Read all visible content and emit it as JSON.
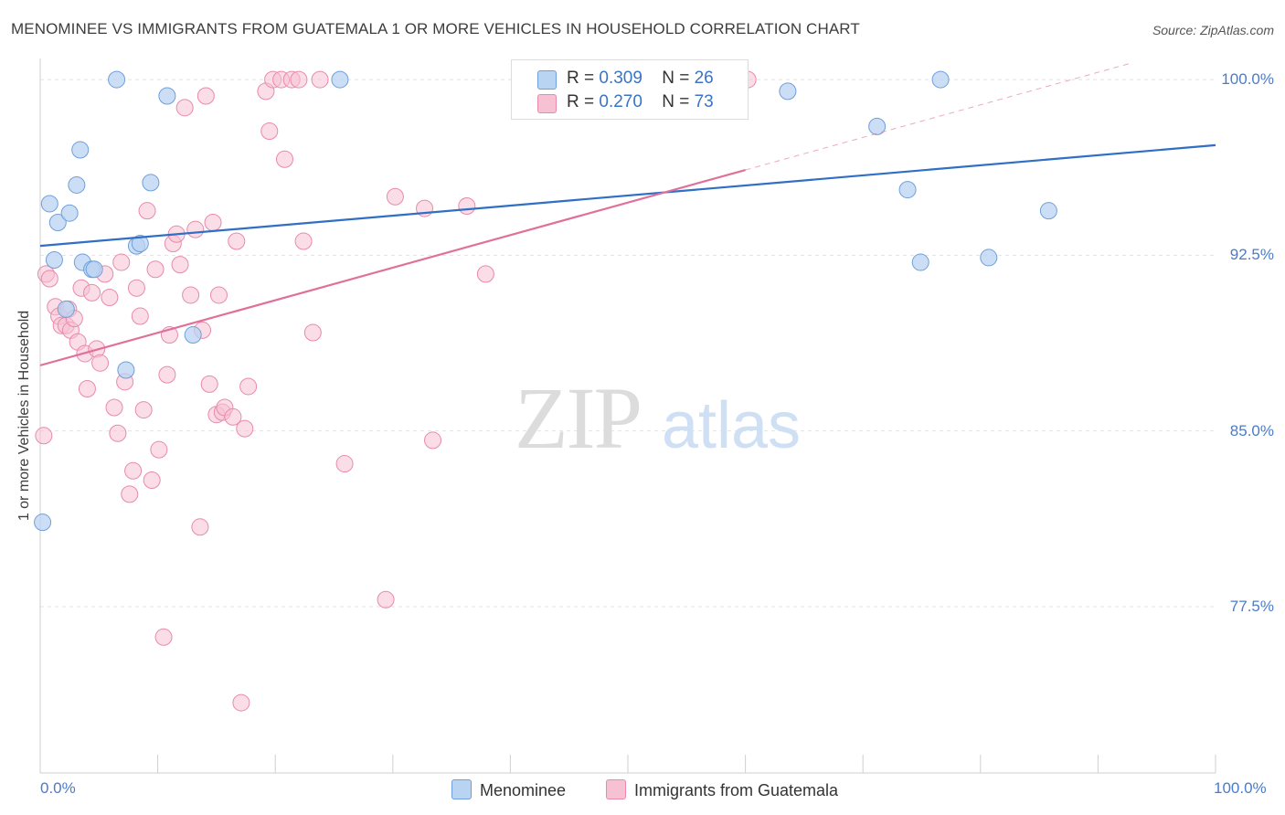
{
  "title": "MENOMINEE VS IMMIGRANTS FROM GUATEMALA 1 OR MORE VEHICLES IN HOUSEHOLD CORRELATION CHART",
  "source": "Source: ZipAtlas.com",
  "watermark": {
    "zip": "ZIP",
    "atlas": "atlas"
  },
  "legend": {
    "row1": {
      "r_label": "R = ",
      "r_value": "0.309",
      "n_label": "N = ",
      "n_value": "26"
    },
    "row2": {
      "r_label": "R = ",
      "r_value": "0.270",
      "n_label": "N = ",
      "n_value": "73"
    }
  },
  "bottom_legend": {
    "series1": "Menominee",
    "series2": "Immigrants from Guatemala"
  },
  "colors": {
    "blue_fill": "#b9d3f3",
    "blue_stroke": "#6f9fd8",
    "blue_line": "#2f6fc4",
    "pink_fill": "#f6c1d3",
    "pink_stroke": "#e88aab",
    "pink_line": "#e0709a",
    "tick_text": "#4a7cc9",
    "grid": "#e2e2e2"
  },
  "chart_data": {
    "type": "scatter",
    "title": "MENOMINEE VS IMMIGRANTS FROM GUATEMALA 1 OR MORE VEHICLES IN HOUSEHOLD CORRELATION CHART",
    "xlabel": "",
    "ylabel": "1 or more Vehicles in Household",
    "xlim": [
      0,
      100
    ],
    "ylim": [
      70.4,
      100.9
    ],
    "x_tick_labels": [
      "0.0%",
      "100.0%"
    ],
    "y_ticks": [
      {
        "value": 100.0,
        "label": "100.0%"
      },
      {
        "value": 92.5,
        "label": "92.5%"
      },
      {
        "value": 85.0,
        "label": "85.0%"
      },
      {
        "value": 77.5,
        "label": "77.5%"
      }
    ],
    "grid": true,
    "series": [
      {
        "name": "Menominee",
        "color": "#b9d3f3",
        "r": 0.309,
        "n": 26,
        "trend": {
          "x": [
            0,
            100
          ],
          "y": [
            92.9,
            97.2
          ],
          "solid_until": 100
        },
        "points": [
          [
            0.2,
            81.1
          ],
          [
            0.8,
            94.7
          ],
          [
            1.2,
            92.3
          ],
          [
            1.5,
            93.9
          ],
          [
            2.2,
            90.2
          ],
          [
            2.5,
            94.3
          ],
          [
            3.1,
            95.5
          ],
          [
            3.4,
            97.0
          ],
          [
            3.6,
            92.2
          ],
          [
            4.4,
            91.9
          ],
          [
            4.6,
            91.9
          ],
          [
            6.5,
            100.0
          ],
          [
            7.3,
            87.6
          ],
          [
            8.2,
            92.9
          ],
          [
            8.5,
            93.0
          ],
          [
            9.4,
            95.6
          ],
          [
            10.8,
            99.3
          ],
          [
            13.0,
            89.1
          ],
          [
            25.5,
            100.0
          ],
          [
            63.6,
            99.5
          ],
          [
            71.2,
            98.0
          ],
          [
            73.8,
            95.3
          ],
          [
            74.9,
            92.2
          ],
          [
            76.6,
            100.0
          ],
          [
            80.7,
            92.4
          ],
          [
            85.8,
            94.4
          ]
        ]
      },
      {
        "name": "Immigrants from Guatemala",
        "color": "#f6c1d3",
        "r": 0.27,
        "n": 73,
        "trend": {
          "x": [
            0,
            100
          ],
          "y": [
            87.8,
            101.7
          ],
          "solid_until": 60
        },
        "points": [
          [
            0.3,
            84.8
          ],
          [
            0.5,
            91.7
          ],
          [
            0.8,
            91.5
          ],
          [
            1.3,
            90.3
          ],
          [
            1.6,
            89.9
          ],
          [
            1.8,
            89.5
          ],
          [
            2.2,
            89.5
          ],
          [
            2.4,
            90.2
          ],
          [
            2.6,
            89.3
          ],
          [
            2.9,
            89.8
          ],
          [
            3.2,
            88.8
          ],
          [
            3.5,
            91.1
          ],
          [
            3.8,
            88.3
          ],
          [
            4.0,
            86.8
          ],
          [
            4.4,
            90.9
          ],
          [
            4.8,
            88.5
          ],
          [
            5.1,
            87.9
          ],
          [
            5.5,
            91.7
          ],
          [
            5.9,
            90.7
          ],
          [
            6.3,
            86.0
          ],
          [
            6.6,
            84.9
          ],
          [
            6.9,
            92.2
          ],
          [
            7.2,
            87.1
          ],
          [
            7.6,
            82.3
          ],
          [
            7.9,
            83.3
          ],
          [
            8.2,
            91.1
          ],
          [
            8.5,
            89.9
          ],
          [
            8.8,
            85.9
          ],
          [
            9.1,
            94.4
          ],
          [
            9.5,
            82.9
          ],
          [
            9.8,
            91.9
          ],
          [
            10.1,
            84.2
          ],
          [
            10.5,
            76.2
          ],
          [
            10.8,
            87.4
          ],
          [
            11.0,
            89.1
          ],
          [
            11.3,
            93.0
          ],
          [
            11.6,
            93.4
          ],
          [
            11.9,
            92.1
          ],
          [
            12.3,
            98.8
          ],
          [
            12.8,
            90.8
          ],
          [
            13.2,
            93.6
          ],
          [
            13.6,
            80.9
          ],
          [
            13.8,
            89.3
          ],
          [
            14.1,
            99.3
          ],
          [
            14.4,
            87.0
          ],
          [
            14.7,
            93.9
          ],
          [
            15.0,
            85.7
          ],
          [
            15.2,
            90.8
          ],
          [
            15.5,
            85.8
          ],
          [
            15.7,
            86.0
          ],
          [
            16.4,
            85.6
          ],
          [
            16.7,
            93.1
          ],
          [
            17.1,
            73.4
          ],
          [
            17.4,
            85.1
          ],
          [
            17.7,
            86.9
          ],
          [
            19.2,
            99.5
          ],
          [
            19.5,
            97.8
          ],
          [
            19.8,
            100.0
          ],
          [
            20.5,
            100.0
          ],
          [
            20.8,
            96.6
          ],
          [
            21.4,
            100.0
          ],
          [
            22.0,
            100.0
          ],
          [
            22.4,
            93.1
          ],
          [
            23.2,
            89.2
          ],
          [
            23.8,
            100.0
          ],
          [
            25.9,
            83.6
          ],
          [
            29.4,
            77.8
          ],
          [
            30.2,
            95.0
          ],
          [
            32.7,
            94.5
          ],
          [
            33.4,
            84.6
          ],
          [
            36.3,
            94.6
          ],
          [
            37.9,
            91.7
          ],
          [
            60.2,
            100.0
          ]
        ]
      }
    ]
  }
}
